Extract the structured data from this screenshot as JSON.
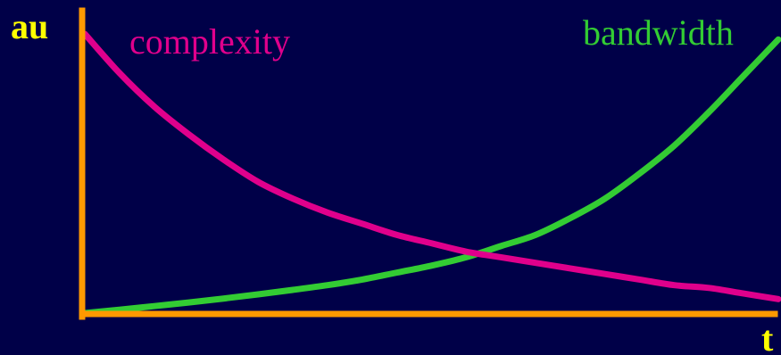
{
  "chart_data": {
    "type": "line",
    "title": "",
    "ylabel": "au",
    "xlabel": "t",
    "grid": false,
    "background_color": "#000048",
    "axis_color": "#FF9900",
    "axis_label_color": "#FFFF00",
    "xlim": [
      0,
      1
    ],
    "ylim": [
      0,
      1
    ],
    "series": [
      {
        "name": "complexity",
        "color": "#E0008C",
        "x": [
          0.0,
          0.05,
          0.1,
          0.15,
          0.2,
          0.25,
          0.3,
          0.35,
          0.4,
          0.45,
          0.5,
          0.55,
          0.6,
          0.65,
          0.7,
          0.75,
          0.8,
          0.85,
          0.9,
          0.95,
          1.0
        ],
        "y": [
          1.0,
          0.86,
          0.74,
          0.64,
          0.55,
          0.47,
          0.41,
          0.36,
          0.32,
          0.28,
          0.25,
          0.22,
          0.2,
          0.18,
          0.16,
          0.14,
          0.12,
          0.1,
          0.09,
          0.07,
          0.05
        ]
      },
      {
        "name": "bandwidth",
        "color": "#33CC33",
        "x": [
          0.0,
          0.05,
          0.1,
          0.15,
          0.2,
          0.25,
          0.3,
          0.35,
          0.4,
          0.45,
          0.5,
          0.55,
          0.6,
          0.65,
          0.7,
          0.75,
          0.8,
          0.85,
          0.9,
          0.95,
          1.0
        ],
        "y": [
          0.0,
          0.012,
          0.025,
          0.038,
          0.052,
          0.067,
          0.083,
          0.1,
          0.12,
          0.145,
          0.17,
          0.2,
          0.24,
          0.28,
          0.34,
          0.41,
          0.5,
          0.6,
          0.72,
          0.85,
          0.98
        ]
      }
    ]
  }
}
